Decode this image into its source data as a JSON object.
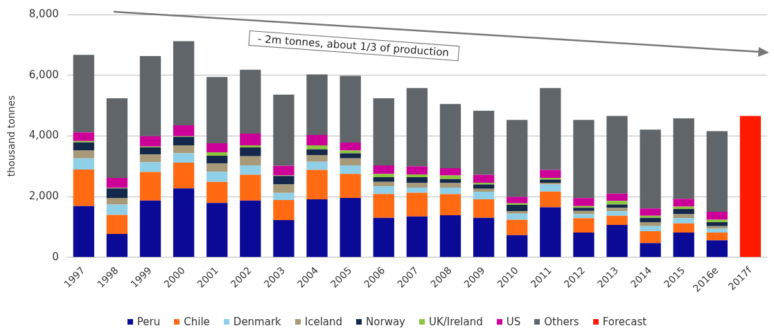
{
  "chart_data": {
    "type": "bar",
    "stacked": true,
    "ylabel": "thousand tonnes",
    "categories": [
      "1997",
      "1998",
      "1999",
      "2000",
      "2001",
      "2002",
      "2003",
      "2004",
      "2005",
      "2006",
      "2007",
      "2008",
      "2009",
      "2010",
      "2011",
      "2012",
      "2013",
      "2014",
      "2015",
      "2016e",
      "2017f"
    ],
    "series": [
      {
        "name": "Peru",
        "color": "#0a0a96",
        "values": [
          1690,
          770,
          1870,
          2270,
          1790,
          1870,
          1230,
          1910,
          1960,
          1300,
          1350,
          1390,
          1300,
          730,
          1650,
          820,
          1070,
          470,
          820,
          560,
          null
        ]
      },
      {
        "name": "Chile",
        "color": "#ff6a13",
        "values": [
          1200,
          630,
          940,
          850,
          700,
          850,
          660,
          970,
          790,
          790,
          780,
          690,
          610,
          510,
          520,
          470,
          300,
          390,
          300,
          260,
          null
        ]
      },
      {
        "name": "Denmark",
        "color": "#8fd0e8",
        "values": [
          370,
          340,
          320,
          310,
          330,
          310,
          230,
          270,
          280,
          250,
          170,
          220,
          250,
          200,
          230,
          130,
          150,
          170,
          170,
          120,
          null
        ]
      },
      {
        "name": "Iceland",
        "color": "#a89a78",
        "values": [
          260,
          220,
          260,
          260,
          270,
          300,
          280,
          220,
          230,
          150,
          150,
          150,
          100,
          80,
          60,
          110,
          110,
          130,
          130,
          90,
          null
        ]
      },
      {
        "name": "Norway",
        "color": "#14284b",
        "values": [
          270,
          310,
          230,
          280,
          260,
          290,
          280,
          190,
          170,
          150,
          190,
          130,
          140,
          210,
          100,
          100,
          110,
          140,
          170,
          130,
          null
        ]
      },
      {
        "name": "UK/Ireland",
        "color": "#8cc63f",
        "values": [
          40,
          20,
          30,
          20,
          110,
          70,
          20,
          130,
          90,
          110,
          90,
          120,
          60,
          50,
          60,
          60,
          120,
          70,
          80,
          80,
          null
        ]
      },
      {
        "name": "US",
        "color": "#cc0099",
        "values": [
          290,
          330,
          340,
          360,
          300,
          390,
          320,
          340,
          260,
          280,
          270,
          240,
          260,
          210,
          260,
          260,
          240,
          240,
          260,
          260,
          null
        ]
      },
      {
        "name": "Others",
        "color": "#5f6569",
        "values": [
          2550,
          2620,
          2640,
          2770,
          2180,
          2100,
          2340,
          2000,
          2200,
          2210,
          2580,
          2110,
          2110,
          2540,
          2700,
          2580,
          2560,
          2600,
          2650,
          2660,
          null
        ]
      },
      {
        "name": "Forecast",
        "color": "#ff1a00",
        "values": [
          null,
          null,
          null,
          null,
          null,
          null,
          null,
          null,
          null,
          null,
          null,
          null,
          null,
          null,
          null,
          null,
          null,
          null,
          null,
          null,
          4660
        ]
      }
    ],
    "ylim": [
      0,
      8000
    ],
    "yticks": [
      0,
      {
        "value": 2000,
        "label": "2,000"
      },
      {
        "value": 4000,
        "label": "4,000"
      },
      {
        "value": 6000,
        "label": "6,000"
      },
      {
        "value": 8000,
        "label": "8,000"
      }
    ],
    "grid": "y",
    "legend": "bottom",
    "annotations": [
      "- 2m tonnes, about 1/3 of production"
    ]
  }
}
